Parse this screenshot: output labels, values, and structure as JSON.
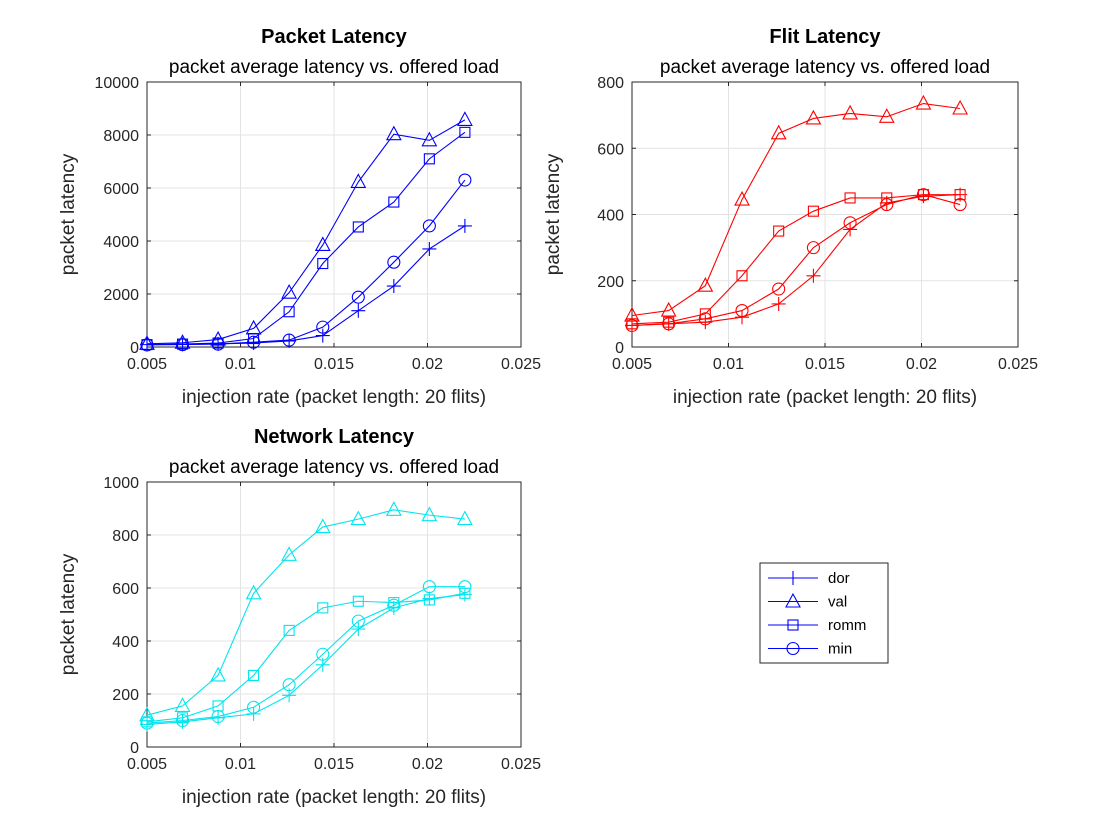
{
  "chart_data": [
    {
      "type": "line",
      "title": "Packet Latency",
      "subtitle": "packet average latency vs. offered load",
      "xlabel": "injection rate (packet length: 20 flits)",
      "ylabel": "packet latency",
      "xlim": [
        0.005,
        0.025
      ],
      "ylim": [
        0,
        10000
      ],
      "xticks": [
        0.005,
        0.01,
        0.015,
        0.02,
        0.025
      ],
      "xtick_labels": [
        "0.005",
        "0.01",
        "0.015",
        "0.02",
        "0.025"
      ],
      "yticks": [
        0,
        2000,
        4000,
        6000,
        8000,
        10000
      ],
      "ytick_labels": [
        "0",
        "2000",
        "4000",
        "6000",
        "8000",
        "10000"
      ],
      "grid": true,
      "color": "#0000ff",
      "x": [
        0.005,
        0.0069,
        0.0088,
        0.0107,
        0.0126,
        0.0144,
        0.0163,
        0.0182,
        0.0201,
        0.022
      ],
      "series": [
        {
          "name": "dor",
          "marker": "plus",
          "values": [
            90,
            100,
            120,
            150,
            230,
            430,
            1370,
            2300,
            3700,
            4570
          ]
        },
        {
          "name": "val",
          "marker": "triangle",
          "values": [
            120,
            160,
            280,
            700,
            2050,
            3850,
            6230,
            8030,
            7800,
            8570
          ]
        },
        {
          "name": "romm",
          "marker": "square",
          "values": [
            90,
            110,
            150,
            320,
            1330,
            3150,
            4530,
            5470,
            7100,
            8100
          ]
        },
        {
          "name": "min",
          "marker": "circle",
          "values": [
            80,
            90,
            110,
            180,
            260,
            750,
            1880,
            3200,
            4570,
            6300
          ]
        }
      ]
    },
    {
      "type": "line",
      "title": "Flit Latency",
      "subtitle": "packet average latency vs. offered load",
      "xlabel": "injection rate (packet length: 20 flits)",
      "ylabel": "packet latency",
      "xlim": [
        0.005,
        0.025
      ],
      "ylim": [
        0,
        800
      ],
      "xticks": [
        0.005,
        0.01,
        0.015,
        0.02,
        0.025
      ],
      "xtick_labels": [
        "0.005",
        "0.01",
        "0.015",
        "0.02",
        "0.025"
      ],
      "yticks": [
        0,
        200,
        400,
        600,
        800
      ],
      "ytick_labels": [
        "0",
        "200",
        "400",
        "600",
        "800"
      ],
      "grid": true,
      "color": "#ff0000",
      "x": [
        0.005,
        0.0069,
        0.0088,
        0.0107,
        0.0126,
        0.0144,
        0.0163,
        0.0182,
        0.0201,
        0.022
      ],
      "series": [
        {
          "name": "dor",
          "marker": "plus",
          "values": [
            65,
            70,
            75,
            90,
            130,
            215,
            355,
            435,
            455,
            460
          ]
        },
        {
          "name": "val",
          "marker": "triangle",
          "values": [
            95,
            110,
            185,
            445,
            645,
            690,
            705,
            695,
            735,
            720
          ]
        },
        {
          "name": "romm",
          "marker": "square",
          "values": [
            70,
            75,
            100,
            215,
            350,
            410,
            450,
            450,
            460,
            460
          ]
        },
        {
          "name": "min",
          "marker": "circle",
          "values": [
            65,
            70,
            85,
            110,
            175,
            300,
            375,
            430,
            460,
            430
          ]
        }
      ]
    },
    {
      "type": "line",
      "title": "Network Latency",
      "subtitle": "packet average latency vs. offered load",
      "xlabel": "injection rate (packet length: 20 flits)",
      "ylabel": "packet latency",
      "xlim": [
        0.005,
        0.025
      ],
      "ylim": [
        0,
        1000
      ],
      "xticks": [
        0.005,
        0.01,
        0.015,
        0.02,
        0.025
      ],
      "xtick_labels": [
        "0.005",
        "0.01",
        "0.015",
        "0.02",
        "0.025"
      ],
      "yticks": [
        0,
        200,
        400,
        600,
        800,
        1000
      ],
      "ytick_labels": [
        "0",
        "200",
        "400",
        "600",
        "800",
        "1000"
      ],
      "grid": true,
      "color": "#00e5ee",
      "x": [
        0.005,
        0.0069,
        0.0088,
        0.0107,
        0.0126,
        0.0144,
        0.0163,
        0.0182,
        0.0201,
        0.022
      ],
      "series": [
        {
          "name": "dor",
          "marker": "plus",
          "values": [
            85,
            95,
            110,
            125,
            195,
            310,
            445,
            525,
            560,
            575
          ]
        },
        {
          "name": "val",
          "marker": "triangle",
          "values": [
            120,
            155,
            270,
            580,
            725,
            830,
            860,
            895,
            875,
            860
          ]
        },
        {
          "name": "romm",
          "marker": "square",
          "values": [
            95,
            110,
            155,
            270,
            440,
            525,
            550,
            545,
            555,
            580
          ]
        },
        {
          "name": "min",
          "marker": "circle",
          "values": [
            90,
            100,
            115,
            150,
            235,
            350,
            475,
            535,
            605,
            605
          ]
        }
      ]
    }
  ],
  "legend": {
    "placement": "lower-right",
    "color": "#0000ff",
    "entries": [
      {
        "name": "dor",
        "marker": "plus"
      },
      {
        "name": "val",
        "marker": "triangle"
      },
      {
        "name": "romm",
        "marker": "square"
      },
      {
        "name": "min",
        "marker": "circle"
      }
    ]
  }
}
